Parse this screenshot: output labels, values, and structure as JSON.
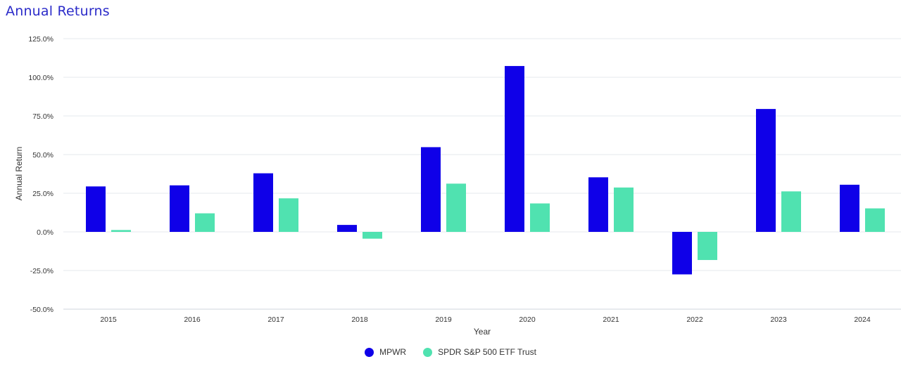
{
  "title": "Annual Returns",
  "chart_data": {
    "type": "bar",
    "xlabel": "Year",
    "ylabel": "Annual Return",
    "ylim": [
      -50,
      125
    ],
    "yticks": [
      125,
      100,
      75,
      50,
      25,
      0,
      -25,
      -50
    ],
    "ytick_labels": [
      "125.0%",
      "100.0%",
      "75.0%",
      "50.0%",
      "25.0%",
      "0.0%",
      "-25.0%",
      "-50.0%"
    ],
    "categories": [
      "2015",
      "2016",
      "2017",
      "2018",
      "2019",
      "2020",
      "2021",
      "2022",
      "2023",
      "2024"
    ],
    "series": [
      {
        "name": "MPWR",
        "color": "#0f00e8",
        "values": [
          29.4,
          30.1,
          37.9,
          4.5,
          54.8,
          107.3,
          35.3,
          -27.5,
          79.5,
          30.5
        ]
      },
      {
        "name": "SPDR S&P 500 ETF Trust",
        "color": "#50e2b0",
        "values": [
          1.2,
          12.0,
          21.7,
          -4.4,
          31.2,
          18.4,
          28.7,
          -18.2,
          26.2,
          15.2
        ]
      }
    ],
    "grid": true,
    "legend": "bottom-center"
  }
}
